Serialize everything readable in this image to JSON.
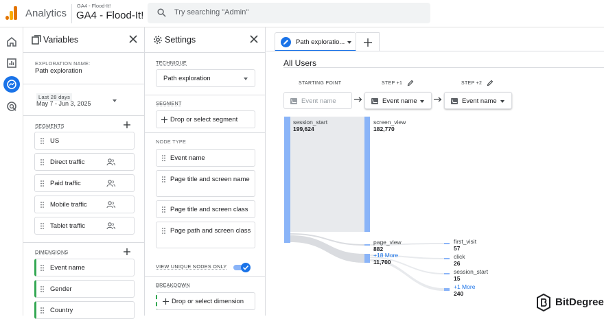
{
  "header": {
    "app_name": "Analytics",
    "property_sub": "GA4 - Flood-It!",
    "property_name": "GA4 - Flood-It!",
    "search_placeholder": "Try searching \"Admin\""
  },
  "rail": {
    "icons": [
      "home-icon",
      "reports-icon",
      "explore-icon",
      "advertising-icon"
    ]
  },
  "variables": {
    "title": "Variables",
    "exploration_name_label": "EXPLORATION NAME:",
    "exploration_name": "Path exploration",
    "date_label": "Last 28 days",
    "date_range": "May 7 - Jun 3, 2025",
    "segments_label": "SEGMENTS",
    "segments": [
      {
        "label": "US",
        "icon": ""
      },
      {
        "label": "Direct traffic",
        "icon": "users-icon"
      },
      {
        "label": "Paid traffic",
        "icon": "users-icon"
      },
      {
        "label": "Mobile traffic",
        "icon": "users-icon"
      },
      {
        "label": "Tablet traffic",
        "icon": "users-icon"
      }
    ],
    "dimensions_label": "DIMENSIONS",
    "dimensions": [
      "Event name",
      "Gender",
      "Country"
    ]
  },
  "settings": {
    "title": "Settings",
    "technique_label": "TECHNIQUE",
    "technique": "Path exploration",
    "segment_label": "SEGMENT",
    "segment_drop": "Drop or select segment",
    "node_type_label": "NODE TYPE",
    "node_types": [
      "Event name",
      "Page title and screen name",
      "Page title and screen class",
      "Page path and screen class"
    ],
    "unique_nodes_label": "VIEW UNIQUE NODES ONLY",
    "unique_nodes_on": true,
    "breakdown_label": "BREAKDOWN",
    "breakdown_drop": "Drop or select dimension"
  },
  "canvas": {
    "tab_label": "Path exploratio...",
    "segment_name": "All Users",
    "columns": [
      {
        "header": "STARTING POINT",
        "selector": "Event name",
        "placeholder": true
      },
      {
        "header": "STEP +1",
        "selector": "Event name",
        "placeholder": false
      },
      {
        "header": "STEP +2",
        "selector": "Event name",
        "placeholder": false
      }
    ],
    "start_node": {
      "label": "session_start",
      "value": "199,624"
    },
    "step1_nodes": [
      {
        "label": "screen_view",
        "value": "182,770"
      },
      {
        "label": "page_view",
        "value": "882"
      },
      {
        "label": "+18 More",
        "value": "11,700",
        "more": true
      }
    ],
    "step2_nodes": [
      {
        "label": "first_visit",
        "value": "57"
      },
      {
        "label": "click",
        "value": "26"
      },
      {
        "label": "session_start",
        "value": "15"
      },
      {
        "label": "+1 More",
        "value": "240",
        "more": true
      }
    ]
  },
  "watermark": {
    "text": "BitDegree"
  },
  "colors": {
    "accent": "#1a73e8",
    "node": "#8ab4f8",
    "divider": "#dadce0",
    "dimension_bar": "#34a853"
  }
}
